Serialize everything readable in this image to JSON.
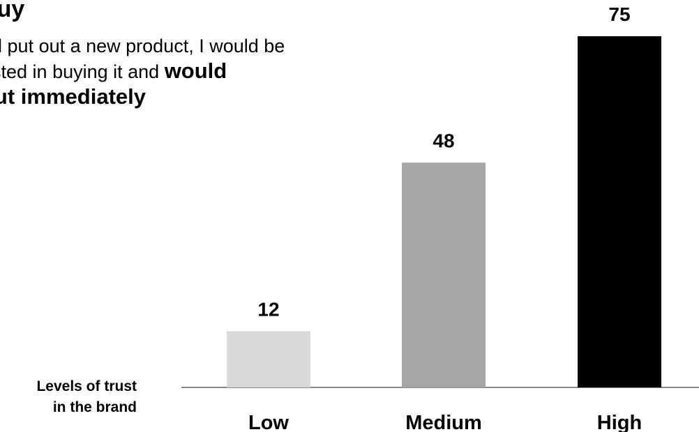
{
  "title": "l buy",
  "description": {
    "line_1": "nd put out a new product, I would be",
    "line_2_prefix": "ested in buying it and ",
    "line_2_bold": "would",
    "line_3_bold": " out immediately"
  },
  "axis_title": {
    "line_1": "Levels of trust",
    "line_2": "in the brand"
  },
  "chart_data": {
    "type": "bar",
    "categories": [
      "Low",
      "Medium",
      "High"
    ],
    "values": [
      12,
      48,
      75
    ],
    "colors": [
      "#d9d9d9",
      "#a6a6a6",
      "#000000"
    ],
    "xlabel": "Levels of trust in the brand",
    "ylabel": "",
    "ylim": [
      0,
      80
    ],
    "grid": false,
    "axis_line_color": "#888888"
  }
}
